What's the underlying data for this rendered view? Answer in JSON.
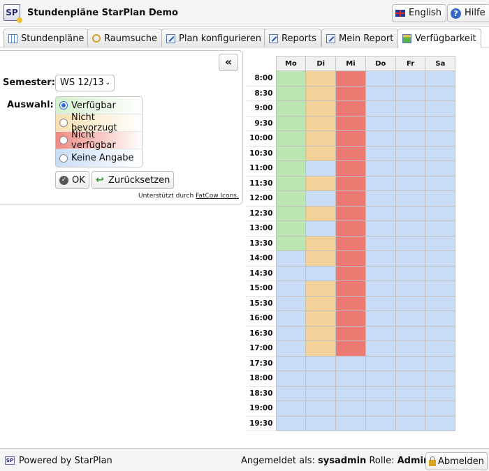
{
  "app": {
    "logo_text": "SP",
    "title": "Stundenpläne StarPlan Demo"
  },
  "header": {
    "language_label": "English",
    "help_label": "Hilfe"
  },
  "tabs": [
    {
      "label": "Stundenpläne",
      "icon": "timetable-icon"
    },
    {
      "label": "Raumsuche",
      "icon": "search-icon"
    },
    {
      "label": "Plan konfigurieren",
      "icon": "edit-icon"
    },
    {
      "label": "Reports",
      "icon": "edit-icon"
    },
    {
      "label": "Mein Report",
      "icon": "edit-icon"
    },
    {
      "label": "Verfügbarkeit",
      "icon": "availability-icon",
      "active": true
    }
  ],
  "panel": {
    "collapse_label": "«",
    "semester_label": "Semester:",
    "semester_value": "WS 12/13",
    "auswahl_label": "Auswahl:",
    "options": [
      {
        "label": "Verfügbar",
        "selected": true,
        "color": "#bde7b2"
      },
      {
        "label": "Nicht bevorzugt",
        "selected": false,
        "color": "#f2d298"
      },
      {
        "label": "Nicht verfügbar",
        "selected": false,
        "color": "#ec7a72"
      },
      {
        "label": "Keine Angabe",
        "selected": false,
        "color": "#c9dcf6"
      }
    ],
    "ok_label": "OK",
    "reset_label": "Zurücksetzen",
    "credit_prefix": "Unterstützt durch",
    "credit_link": "FatCow Icons."
  },
  "grid": {
    "days": [
      "Mo",
      "Di",
      "Mi",
      "Do",
      "Fr",
      "Sa"
    ],
    "times": [
      "8:00",
      "8:30",
      "9:00",
      "9:30",
      "10:00",
      "10:30",
      "11:00",
      "11:30",
      "12:00",
      "12:30",
      "13:00",
      "13:30",
      "14:00",
      "14:30",
      "15:00",
      "15:30",
      "16:00",
      "16:30",
      "17:00",
      "17:30",
      "18:00",
      "18:30",
      "19:00",
      "19:30"
    ],
    "legend": {
      "g": "Verfügbar",
      "o": "Nicht bevorzugt",
      "r": "Nicht verfügbar",
      "b": "Keine Angabe"
    },
    "rows": [
      "gorbbb",
      "gorbbb",
      "gorbbb",
      "gorbbb",
      "gorbbb",
      "gorbbb",
      "gbrbbb",
      "gorbbb",
      "gbrbbb",
      "gorbbb",
      "gbrbbb",
      "gorbbb",
      "borbbb",
      "bbrbbb",
      "borbbb",
      "borbbb",
      "borbbb",
      "borbbb",
      "borbbb",
      "bbbbbb",
      "bbbbbb",
      "bbbbbb",
      "bbbbbb",
      "bbbbbb"
    ]
  },
  "footer": {
    "logo_text": "SP",
    "powered_by": "Powered by StarPlan",
    "logged_in_label": "Angemeldet als:",
    "user": "sysadmin",
    "role_label": "Rolle:",
    "role": "Admin",
    "logout_label": "Abmelden"
  }
}
